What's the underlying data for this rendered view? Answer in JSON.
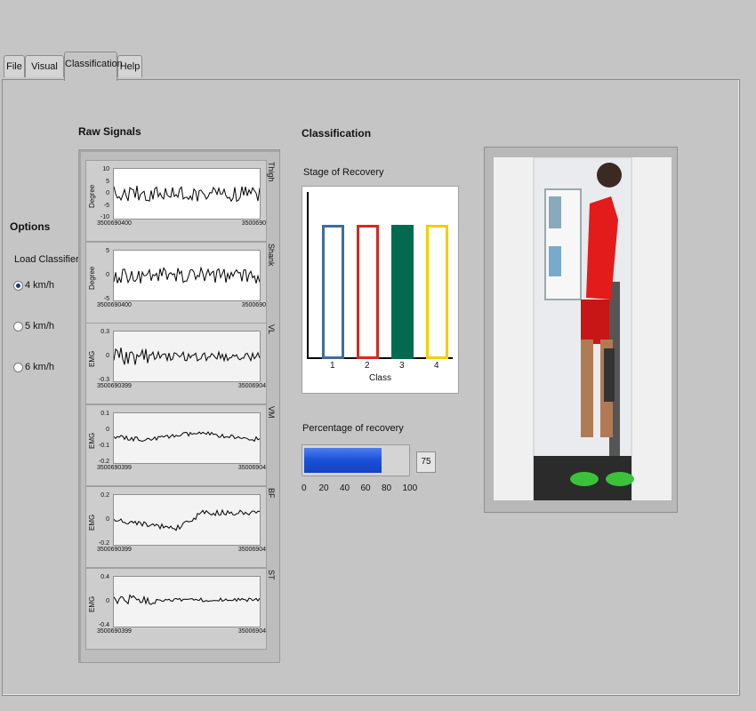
{
  "tabs": [
    "File",
    "Visual BF",
    "Classification",
    "Help"
  ],
  "options": {
    "title": "Options",
    "load_classifier": "Load Classifier",
    "radios": [
      "4 km/h",
      "5 km/h",
      "6 km/h"
    ],
    "selected": "4 km/h"
  },
  "raw_signals": {
    "title": "Raw Signals",
    "channels": [
      {
        "name": "Thigh",
        "ylabel": "Degree",
        "yticks": [
          "10",
          "5",
          "0",
          "-5",
          "-10"
        ],
        "x_start": "3500690400",
        "x_end": "3500690"
      },
      {
        "name": "Shank",
        "ylabel": "Degree",
        "yticks": [
          "5",
          "0",
          "-5"
        ],
        "x_start": "3500690400",
        "x_end": "3500690"
      },
      {
        "name": "VL",
        "ylabel": "EMG",
        "yticks": [
          "0.3",
          "0",
          "-0.3"
        ],
        "x_start": "3500690399",
        "x_end": "35006904"
      },
      {
        "name": "VM",
        "ylabel": "EMG",
        "yticks": [
          "0.1",
          "0",
          "-0.1",
          "-0.2"
        ],
        "x_start": "3500690399",
        "x_end": "35006904"
      },
      {
        "name": "BF",
        "ylabel": "EMG",
        "yticks": [
          "0.2",
          "0",
          "-0.2"
        ],
        "x_start": "3500690399",
        "x_end": "35006904"
      },
      {
        "name": "ST",
        "ylabel": "EMG",
        "yticks": [
          "0.4",
          "0",
          "-0.4"
        ],
        "x_start": "3500690399",
        "x_end": "35006904"
      }
    ]
  },
  "classification": {
    "title": "Classification",
    "stage_label": "Stage of Recovery",
    "xlabel": "Class",
    "classes": [
      "1",
      "2",
      "3",
      "4"
    ],
    "colors": [
      "#3d6e99",
      "#d42a1e",
      "#006b4f",
      "#f0d000"
    ],
    "filled": [
      false,
      false,
      true,
      false
    ],
    "active_class": "3"
  },
  "progress": {
    "label": "Percentage of recovery",
    "value": 75,
    "value_text": "75",
    "scale": [
      "0",
      "20",
      "40",
      "60",
      "80",
      "100"
    ]
  },
  "photo": {
    "alt": "person-walking-on-treadmill"
  }
}
